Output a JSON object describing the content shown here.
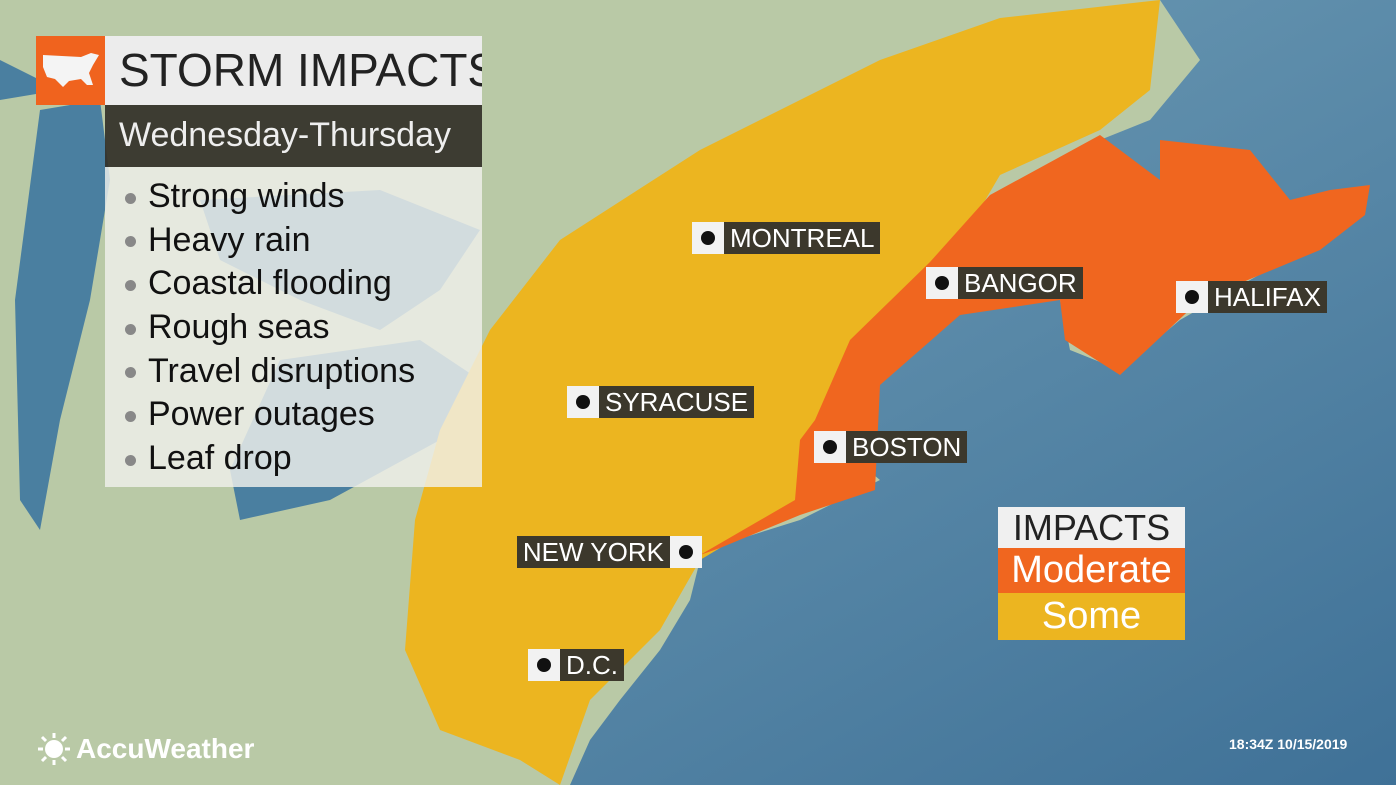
{
  "colors": {
    "moderate": "#f0661f",
    "some": "#ecb520",
    "land": "#b9c9a6",
    "water": "#5b8fab",
    "lake": "#4a7fa0"
  },
  "header": {
    "title": "STORM IMPACTS",
    "subtitle": "Wednesday-Thursday",
    "icon": "us-map-icon"
  },
  "impacts_list": [
    "Strong winds",
    "Heavy rain",
    "Coastal flooding",
    "Rough seas",
    "Travel disruptions",
    "Power outages",
    "Leaf drop"
  ],
  "cities": [
    "MONTREAL",
    "BANGOR",
    "HALIFAX",
    "SYRACUSE",
    "BOSTON",
    "NEW YORK",
    "D.C."
  ],
  "legend": {
    "title": "IMPACTS",
    "levels": [
      "Moderate",
      "Some"
    ]
  },
  "brand": "AccuWeather",
  "timestamp": "18:34Z 10/15/2019"
}
